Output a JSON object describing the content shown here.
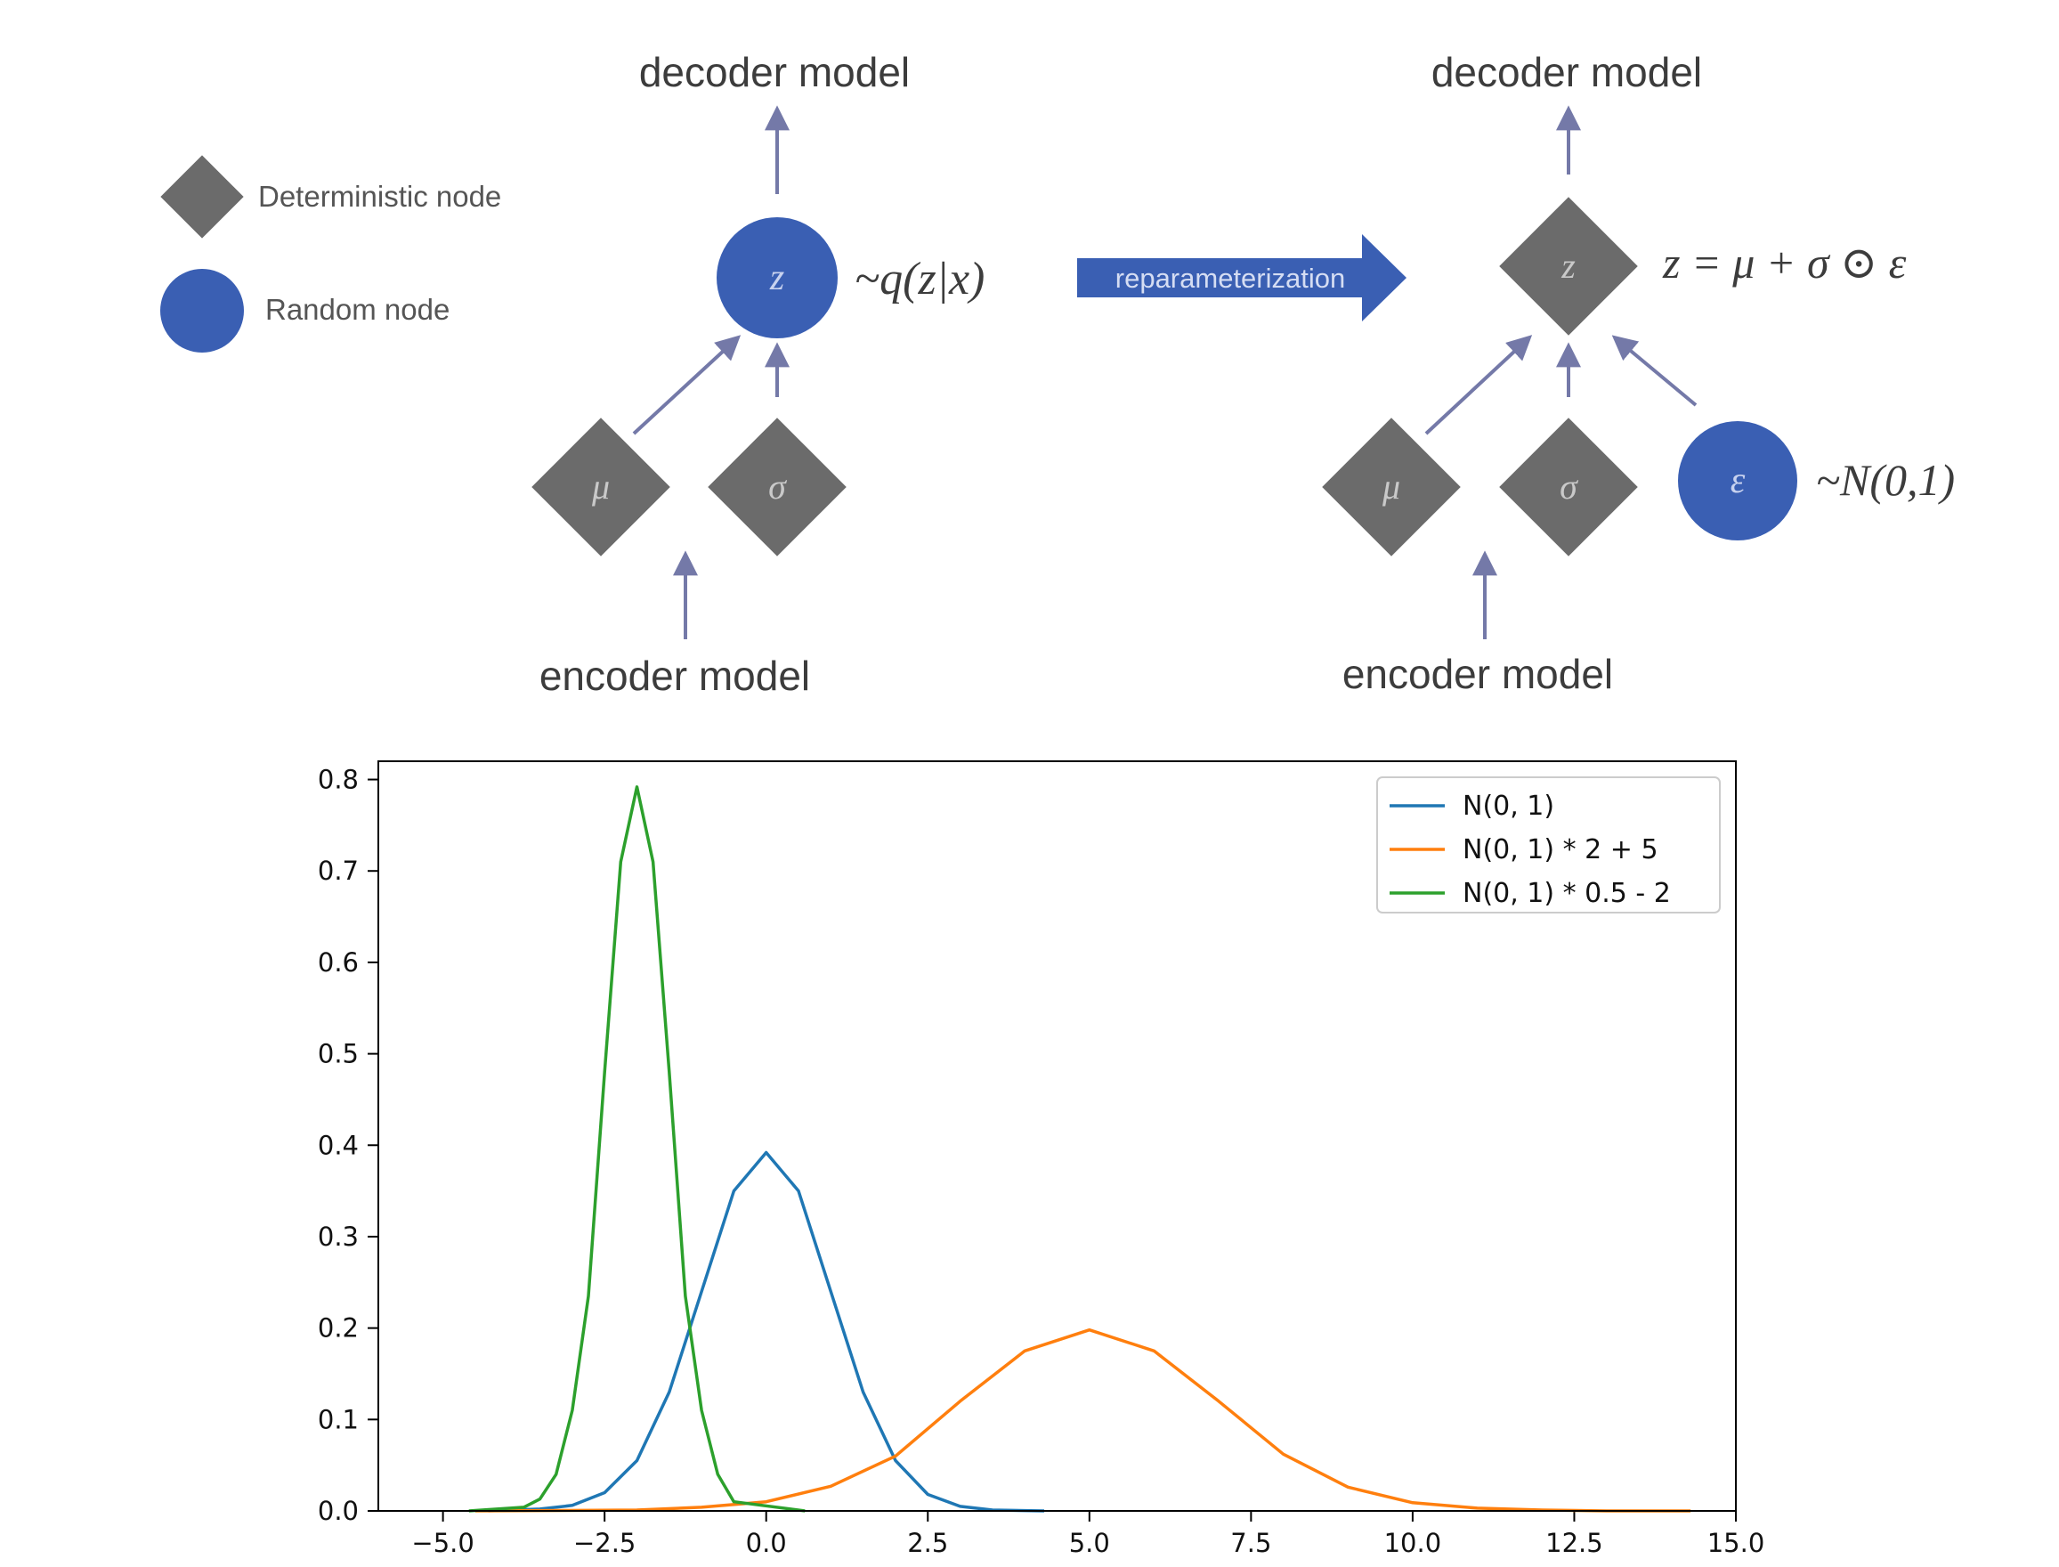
{
  "legend_box": {
    "deterministic_label": "Deterministic node",
    "random_label": "Random node"
  },
  "left_graph": {
    "decoder_label": "decoder model",
    "encoder_label": "encoder model",
    "z_symbol": "z",
    "mu_symbol": "μ",
    "sigma_symbol": "σ",
    "distribution": "~q(z|x)"
  },
  "transition": {
    "label": "reparameterization"
  },
  "right_graph": {
    "decoder_label": "decoder model",
    "encoder_label": "encoder model",
    "z_symbol": "z",
    "mu_symbol": "μ",
    "sigma_symbol": "σ",
    "epsilon_symbol": "ε",
    "equation": "z = μ + σ ⊙ ε",
    "epsilon_distribution": "~N(0,1)"
  },
  "colors": {
    "node_gray": "#6b6b6b",
    "node_blue": "#3a5fb3",
    "arrow": "#7479a8",
    "series_blue": "#1f77b4",
    "series_orange": "#ff7f0e",
    "series_green": "#2ca02c"
  },
  "chart_data": {
    "type": "line",
    "xlim": [
      -6.0,
      15.0
    ],
    "ylim": [
      0.0,
      0.82
    ],
    "x_ticks": [
      -5.0,
      -2.5,
      0.0,
      2.5,
      5.0,
      7.5,
      10.0,
      12.5,
      15.0
    ],
    "x_tick_labels": [
      "−5.0",
      "−2.5",
      "0.0",
      "2.5",
      "5.0",
      "7.5",
      "10.0",
      "12.5",
      "15.0"
    ],
    "y_ticks": [
      0.0,
      0.1,
      0.2,
      0.3,
      0.4,
      0.5,
      0.6,
      0.7,
      0.8
    ],
    "y_tick_labels": [
      "0.0",
      "0.1",
      "0.2",
      "0.3",
      "0.4",
      "0.5",
      "0.6",
      "0.7",
      "0.8"
    ],
    "legend_position": "top-right",
    "grid": false,
    "series": [
      {
        "name": "N(0, 1)",
        "color": "#1f77b4",
        "x": [
          -4.3,
          -3.5,
          -3.0,
          -2.5,
          -2.0,
          -1.5,
          -1.0,
          -0.5,
          0.0,
          0.5,
          1.0,
          1.5,
          2.0,
          2.5,
          3.0,
          3.5,
          4.3
        ],
        "y": [
          0.0,
          0.002,
          0.006,
          0.02,
          0.055,
          0.13,
          0.24,
          0.35,
          0.392,
          0.35,
          0.24,
          0.13,
          0.055,
          0.018,
          0.005,
          0.001,
          0.0
        ]
      },
      {
        "name": "N(0, 1) * 2 + 5",
        "color": "#ff7f0e",
        "x": [
          -4.5,
          -2.0,
          -1.0,
          0.0,
          1.0,
          2.0,
          3.0,
          4.0,
          5.0,
          6.0,
          7.0,
          8.0,
          9.0,
          10.0,
          11.0,
          12.0,
          13.0,
          14.3
        ],
        "y": [
          0.0,
          0.001,
          0.004,
          0.01,
          0.027,
          0.06,
          0.12,
          0.175,
          0.198,
          0.175,
          0.12,
          0.062,
          0.026,
          0.009,
          0.003,
          0.001,
          0.0,
          0.0
        ]
      },
      {
        "name": "N(0, 1) * 0.5 - 2",
        "color": "#2ca02c",
        "x": [
          -4.6,
          -3.75,
          -3.5,
          -3.25,
          -3.0,
          -2.75,
          -2.5,
          -2.25,
          -2.0,
          -1.75,
          -1.5,
          -1.25,
          -1.0,
          -0.75,
          -0.5,
          0.6
        ],
        "y": [
          0.0,
          0.004,
          0.013,
          0.04,
          0.11,
          0.235,
          0.48,
          0.71,
          0.792,
          0.71,
          0.48,
          0.235,
          0.11,
          0.04,
          0.01,
          0.0
        ]
      }
    ]
  }
}
